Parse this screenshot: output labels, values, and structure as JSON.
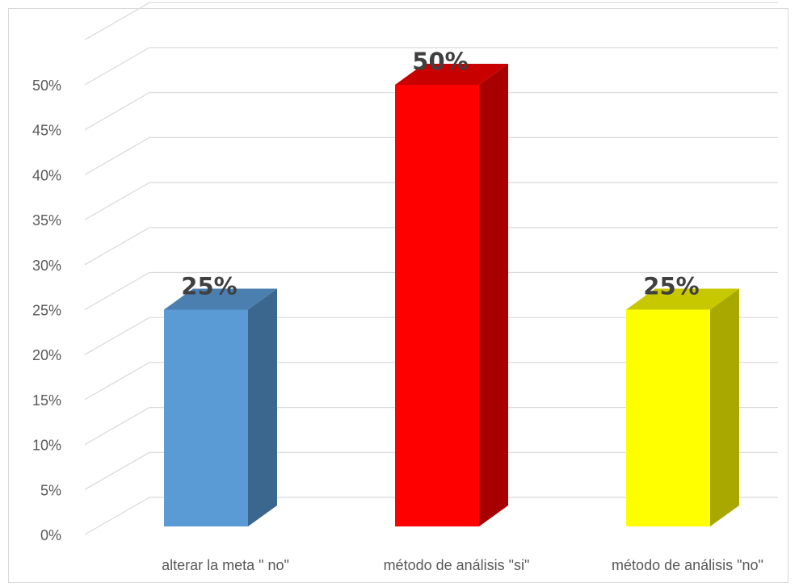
{
  "chart_data": {
    "type": "bar",
    "title": "",
    "xlabel": "",
    "ylabel": "",
    "categories": [
      "alterar la meta \" no\"",
      "método de análisis \"si\"",
      "método de análisis \"no\""
    ],
    "values": [
      25,
      50,
      25
    ],
    "data_labels": [
      "25%",
      "50%",
      "25%"
    ],
    "ylim": [
      0,
      50
    ],
    "yticks": [
      0,
      5,
      10,
      15,
      20,
      25,
      30,
      35,
      40,
      45,
      50
    ],
    "ytick_labels": [
      "0%",
      "5%",
      "10%",
      "15%",
      "20%",
      "25%",
      "30%",
      "35%",
      "40%",
      "45%",
      "50%"
    ],
    "grid": true,
    "legend": "none",
    "style": "3d-column",
    "colors": [
      {
        "front": "#5b9bd5",
        "side": "#3b668e",
        "top": "#4a7fb0"
      },
      {
        "front": "#ff0000",
        "side": "#a80000",
        "top": "#c80000"
      },
      {
        "front": "#ffff00",
        "side": "#a8a800",
        "top": "#c8c800"
      }
    ]
  }
}
